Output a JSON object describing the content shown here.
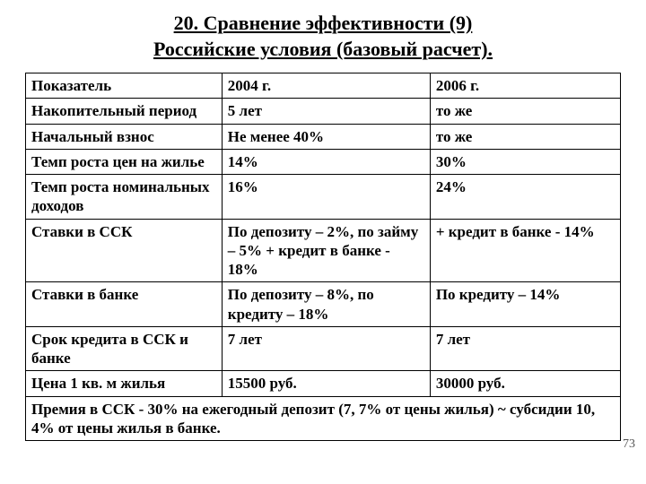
{
  "title_line1": "20. Сравнение эффективности (9)",
  "title_line2": "Российские условия (базовый расчет).",
  "table": {
    "columns": [
      "Показатель",
      "2004 г.",
      "2006 г."
    ],
    "rows": [
      [
        "Накопительный период",
        "5 лет",
        "то же"
      ],
      [
        "Начальный взнос",
        "Не менее 40%",
        "то же"
      ],
      [
        "Темп роста цен на жилье",
        "14%",
        "30%"
      ],
      [
        "Темп роста номинальных доходов",
        "16%",
        "24%"
      ],
      [
        "Ставки в ССК",
        "По депозиту – 2%, по займу – 5% + кредит в банке - 18%",
        "+ кредит в банке - 14%"
      ],
      [
        "Ставки в банке",
        "По депозиту – 8%, по кредиту –  18%",
        "По кредиту – 14%"
      ],
      [
        "Срок кредита в ССК и банке",
        "7 лет",
        "7 лет"
      ],
      [
        "Цена 1 кв. м жилья",
        "15500 руб.",
        "30000 руб."
      ]
    ],
    "footnote": "Премия в ССК - 30% на ежегодный депозит (7, 7% от цены жилья) ~ субсидии 10, 4% от цены жилья в банке."
  },
  "page_number": "73"
}
